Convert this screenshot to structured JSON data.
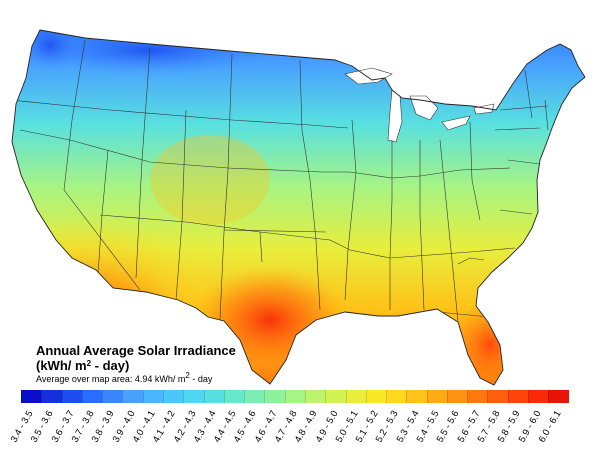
{
  "title": {
    "line1": "Annual Average Solar Irradiance",
    "line2_prefix": "(kWh/ m",
    "line2_sup": "2",
    "line2_suffix": " - day)"
  },
  "subtitle": {
    "prefix": "Average over map area: 4.94 kWh/ m",
    "sup": "2",
    "suffix": " - day"
  },
  "legend": [
    {
      "label": "3.4 - 3.5",
      "color": "#0a10c8"
    },
    {
      "label": "3.5 - 3.6",
      "color": "#1430dc"
    },
    {
      "label": "3.6 - 3.7",
      "color": "#1e4ef0"
    },
    {
      "label": "3.7 - 3.8",
      "color": "#2a6cff"
    },
    {
      "label": "3.8 - 3.9",
      "color": "#3a86ff"
    },
    {
      "label": "3.9 - 4.0",
      "color": "#48a0ff"
    },
    {
      "label": "4.0 - 4.1",
      "color": "#4ab6ff"
    },
    {
      "label": "4.1 - 4.2",
      "color": "#4ac8fa"
    },
    {
      "label": "4.2 - 4.3",
      "color": "#50d6f0"
    },
    {
      "label": "4.3 - 4.4",
      "color": "#58e0e0"
    },
    {
      "label": "4.4 - 4.5",
      "color": "#66e8cc"
    },
    {
      "label": "4.5 - 4.6",
      "color": "#7aeeb4"
    },
    {
      "label": "4.6 - 4.7",
      "color": "#8ef29c"
    },
    {
      "label": "4.7 - 4.8",
      "color": "#a6f484"
    },
    {
      "label": "4.8 - 4.9",
      "color": "#bef46c"
    },
    {
      "label": "4.9 - 5.0",
      "color": "#d4f254"
    },
    {
      "label": "5.0 - 5.1",
      "color": "#e8ee3c"
    },
    {
      "label": "5.1 - 5.2",
      "color": "#f8e828"
    },
    {
      "label": "5.2 - 5.3",
      "color": "#ffd820"
    },
    {
      "label": "5.3 - 5.4",
      "color": "#ffc218"
    },
    {
      "label": "5.4 - 5.5",
      "color": "#ffaa14"
    },
    {
      "label": "5.5 - 5.6",
      "color": "#ff9210"
    },
    {
      "label": "5.6 - 5.7",
      "color": "#ff780e"
    },
    {
      "label": "5.7 - 5.8",
      "color": "#ff5e0c"
    },
    {
      "label": "5.8 - 5.9",
      "color": "#ff440a"
    },
    {
      "label": "5.9 - 6.0",
      "color": "#f82a08"
    },
    {
      "label": "6.0 - 6.1",
      "color": "#e81406"
    }
  ]
}
